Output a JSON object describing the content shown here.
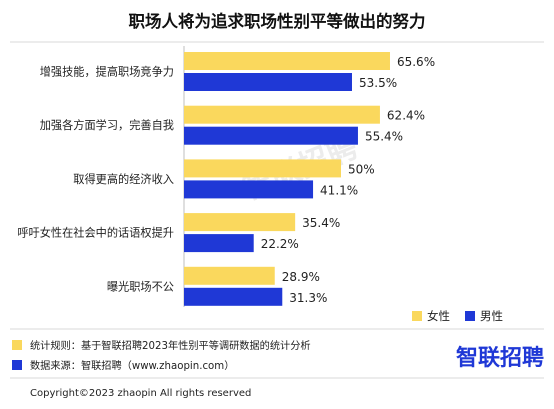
{
  "chart_data": {
    "type": "bar",
    "orientation": "horizontal",
    "title": "职场人将为追求职场性别平等做出的努力",
    "categories": [
      "增强技能，提高职场竞争力",
      "加强各方面学习，完善自我",
      "取得更高的经济收入",
      "呼吁女性在社会中的话语权提升",
      "曝光职场不公"
    ],
    "series": [
      {
        "name": "女性",
        "color": "#FAD85D",
        "values": [
          65.6,
          62.4,
          50,
          35.4,
          28.9
        ],
        "labels": [
          "65.6%",
          "62.4%",
          "50%",
          "35.4%",
          "28.9%"
        ]
      },
      {
        "name": "男性",
        "color": "#1F38D6",
        "values": [
          53.5,
          55.4,
          41.1,
          22.2,
          31.3
        ],
        "labels": [
          "53.5%",
          "55.4%",
          "41.1%",
          "22.2%",
          "31.3%"
        ]
      }
    ],
    "xlim": [
      0,
      100
    ],
    "grid": false,
    "legend": "bottom-right"
  },
  "notes": [
    {
      "label": "统计规则：",
      "text": "基于智联招聘2023年性别平等调研数据的统计分析",
      "color": "#FAD85D"
    },
    {
      "label": "数据来源：",
      "text": "智联招聘（www.zhaopin.com）",
      "color": "#1F38D6"
    }
  ],
  "watermark": "智联招聘",
  "brand": "智联招聘",
  "copyright": "Copyright©2023 zhaopin All rights reserved"
}
